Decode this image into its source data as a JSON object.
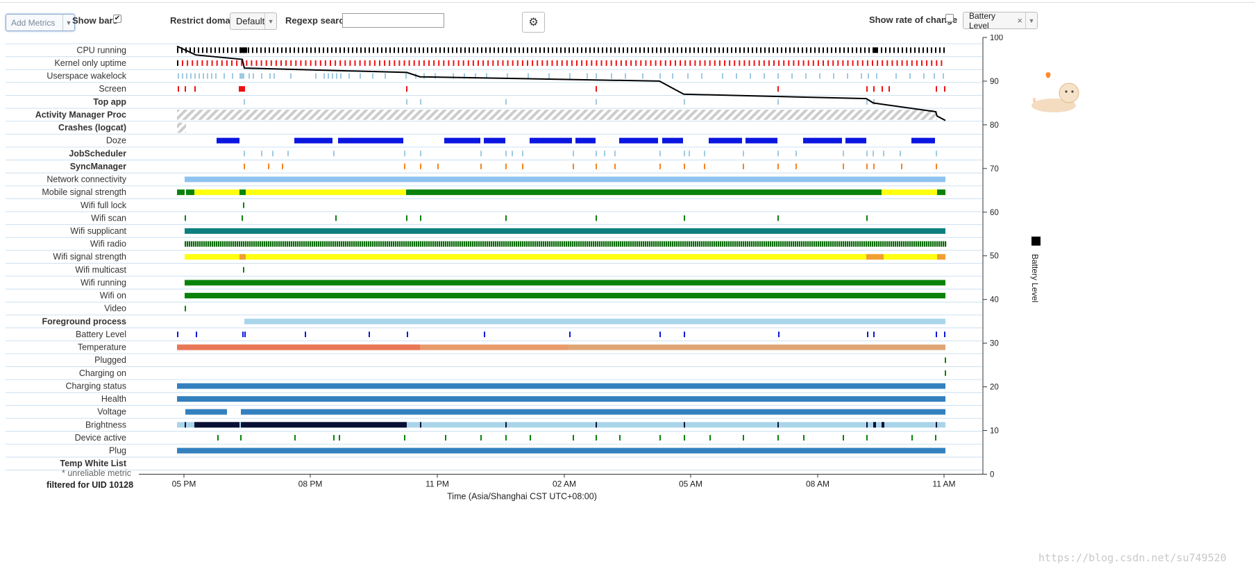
{
  "toolbar": {
    "add_metrics": "Add Metrics",
    "show_bars": "Show bars",
    "show_bars_checked": "✔",
    "restrict_domain": "Restrict domain",
    "domain_value": "Default",
    "regexp_search": "Regexp search",
    "regexp_value": "",
    "show_rate": "Show rate of change",
    "battery_select": "Battery Level",
    "battery_remove": "×",
    "gear_icon": "⚙"
  },
  "colors": {
    "black": "#000000",
    "red": "#ee1111",
    "lightblue": "#9ecae1",
    "blue": "#0a16e0",
    "orange": "#f58220",
    "sky": "#8fc3f0",
    "green": "#0a820a",
    "yellow": "#ffff10",
    "teal": "#0e7f80",
    "darkgreen": "#0a6a0a",
    "steel": "#3380bf",
    "palebar": "#a9d5ea",
    "temp1": "#e87757",
    "temp2": "#e99a6b",
    "temp3": "#dfa575",
    "navy": "#0a0f35",
    "hatch": "#cccccc"
  },
  "rows": [
    {
      "label": "CPU running",
      "bold": false
    },
    {
      "label": "Kernel only uptime",
      "bold": false
    },
    {
      "label": "Userspace wakelock",
      "bold": false
    },
    {
      "label": "Screen",
      "bold": false
    },
    {
      "label": "Top app",
      "bold": true
    },
    {
      "label": "Activity Manager Proc",
      "bold": true
    },
    {
      "label": "Crashes (logcat)",
      "bold": true
    },
    {
      "label": "Doze",
      "bold": false
    },
    {
      "label": "JobScheduler",
      "bold": true
    },
    {
      "label": "SyncManager",
      "bold": true
    },
    {
      "label": "Network connectivity",
      "bold": false
    },
    {
      "label": "Mobile signal strength",
      "bold": false
    },
    {
      "label": "Wifi full lock",
      "bold": false
    },
    {
      "label": "Wifi scan",
      "bold": false
    },
    {
      "label": "Wifi supplicant",
      "bold": false
    },
    {
      "label": "Wifi radio",
      "bold": false
    },
    {
      "label": "Wifi signal strength",
      "bold": false
    },
    {
      "label": "Wifi multicast",
      "bold": false
    },
    {
      "label": "Wifi running",
      "bold": false
    },
    {
      "label": "Wifi on",
      "bold": false
    },
    {
      "label": "Video",
      "bold": false
    },
    {
      "label": "Foreground process",
      "bold": true
    },
    {
      "label": "Battery Level",
      "bold": false
    },
    {
      "label": "Temperature",
      "bold": false
    },
    {
      "label": "Plugged",
      "bold": false
    },
    {
      "label": "Charging on",
      "bold": false
    },
    {
      "label": "Charging status",
      "bold": false
    },
    {
      "label": "Health",
      "bold": false
    },
    {
      "label": "Voltage",
      "bold": false
    },
    {
      "label": "Brightness",
      "bold": false
    },
    {
      "label": "Device active",
      "bold": false
    },
    {
      "label": "Plug",
      "bold": false
    },
    {
      "label": "Temp White List",
      "bold": true
    }
  ],
  "x_ticks": [
    "05 PM",
    "08 PM",
    "11 PM",
    "02 AM",
    "05 AM",
    "08 AM",
    "11 AM"
  ],
  "y_ticks": [
    "0",
    "10",
    "20",
    "30",
    "40",
    "50",
    "60",
    "70",
    "80",
    "90",
    "100"
  ],
  "x_axis_label": "Time (Asia/Shanghai CST UTC+08:00)",
  "y_axis_label": "Battery Level",
  "footer": {
    "unreliable": "* unreliable metric",
    "filtered": "filtered for UID 10128"
  },
  "watermark": "https://blog.csdn.net/su749520",
  "chart_data": {
    "type": "line",
    "title": "",
    "xlabel": "Time (Asia/Shanghai CST UTC+08:00)",
    "ylabel": "Battery Level",
    "ylim": [
      0,
      100
    ],
    "x": [
      "04:50 PM",
      "05:15 PM",
      "05:35 PM",
      "06:25 PM",
      "06:30 PM",
      "09:20 PM",
      "10:00 PM",
      "04:15 AM",
      "04:50 AM",
      "04:55 AM",
      "09:50 AM",
      "10:10 AM",
      "10:55 AM",
      "11:00 AM"
    ],
    "series": [
      {
        "name": "Battery Level",
        "values": [
          98,
          96,
          95,
          93,
          92,
          91,
          90,
          87,
          86,
          85,
          83,
          82,
          81,
          82
        ]
      }
    ]
  }
}
